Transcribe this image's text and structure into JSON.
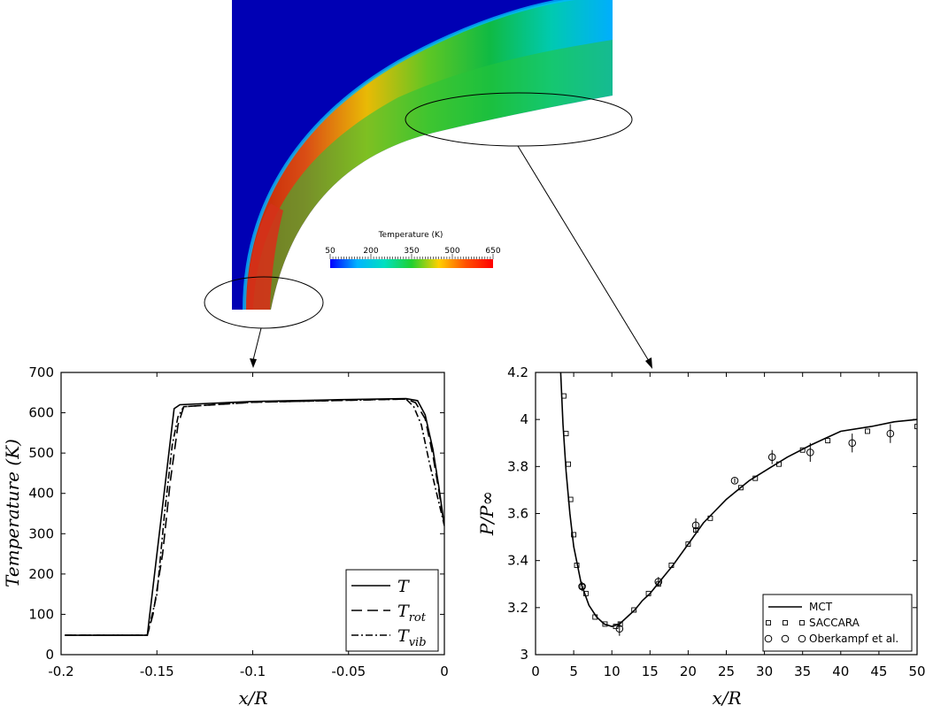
{
  "colorbar": {
    "title": "Temperature (K)",
    "ticks": [
      "50",
      "200",
      "350",
      "500",
      "650"
    ],
    "range": [
      50,
      650
    ],
    "colors": [
      "#0000ff",
      "#00b4ff",
      "#00e0c0",
      "#20d030",
      "#ffd000",
      "#ff5000",
      "#ff0000"
    ]
  },
  "contour": {
    "background_color": "#0000b4",
    "shock_colors": [
      "#00b4ff",
      "#00d0b0",
      "#10c040",
      "#60cc20",
      "#f0c000",
      "#e05010",
      "#c81e00"
    ]
  },
  "chart_data": [
    {
      "type": "line",
      "xlabel": "x/R",
      "ylabel": "Temperature (K)",
      "xlim": [
        -0.2,
        0
      ],
      "ylim": [
        0,
        700
      ],
      "x_ticks": [
        "-0.2",
        "-0.15",
        "-0.1",
        "-0.05",
        "0"
      ],
      "y_ticks": [
        "0",
        "100",
        "200",
        "300",
        "400",
        "500",
        "600",
        "700"
      ],
      "legend_position": "bottom-right",
      "series": [
        {
          "name": "T",
          "style": "solid",
          "x": [
            -0.198,
            -0.155,
            -0.141,
            -0.138,
            -0.1,
            -0.06,
            -0.02,
            -0.014,
            -0.01,
            -0.006,
            -0.003,
            0.0
          ],
          "y": [
            48,
            48,
            610,
            620,
            628,
            632,
            635,
            630,
            595,
            510,
            420,
            320
          ]
        },
        {
          "name": "T_rot",
          "style": "dashed",
          "x": [
            -0.198,
            -0.155,
            -0.152,
            -0.147,
            -0.143,
            -0.139,
            -0.136,
            -0.1,
            -0.06,
            -0.02,
            -0.015,
            -0.01,
            -0.006,
            -0.003,
            0.0
          ],
          "y": [
            48,
            48,
            100,
            250,
            430,
            570,
            615,
            626,
            630,
            634,
            625,
            585,
            495,
            410,
            320
          ]
        },
        {
          "name": "T_vib",
          "style": "dashdot",
          "x": [
            -0.198,
            -0.155,
            -0.15,
            -0.146,
            -0.142,
            -0.139,
            -0.136,
            -0.1,
            -0.06,
            -0.02,
            -0.016,
            -0.012,
            -0.008,
            -0.004,
            0.0
          ],
          "y": [
            48,
            48,
            150,
            350,
            520,
            590,
            615,
            626,
            630,
            634,
            615,
            570,
            480,
            400,
            320
          ]
        }
      ]
    },
    {
      "type": "line",
      "xlabel": "x/R",
      "ylabel": "P/P∞",
      "xlim": [
        0,
        50
      ],
      "ylim": [
        3,
        4.2
      ],
      "x_ticks": [
        "0",
        "5",
        "10",
        "15",
        "20",
        "25",
        "30",
        "35",
        "40",
        "45",
        "50"
      ],
      "y_ticks": [
        "3",
        "3.2",
        "3.4",
        "3.6",
        "3.8",
        "4",
        "4.2"
      ],
      "legend_position": "bottom-right",
      "series": [
        {
          "name": "MCT",
          "style": "solid",
          "x": [
            3.3,
            3.6,
            4.0,
            4.5,
            5.0,
            6.0,
            7.0,
            8.0,
            9.0,
            10.0,
            11.0,
            12.0,
            13.0,
            14.0,
            15.0,
            16.0,
            18.0,
            20.0,
            22.0,
            25.0,
            28.0,
            31.0,
            33.0,
            36.0,
            38.0,
            40.0,
            44.0,
            47.0,
            50.0
          ],
          "y": [
            4.2,
            3.98,
            3.78,
            3.6,
            3.46,
            3.3,
            3.21,
            3.16,
            3.13,
            3.12,
            3.13,
            3.16,
            3.19,
            3.23,
            3.26,
            3.3,
            3.38,
            3.47,
            3.56,
            3.66,
            3.74,
            3.8,
            3.84,
            3.89,
            3.92,
            3.95,
            3.97,
            3.99,
            4.0
          ]
        },
        {
          "name": "SACCARA",
          "style": "square",
          "x": [
            3.7,
            4.0,
            4.3,
            4.6,
            5.0,
            5.4,
            6.1,
            6.6,
            7.8,
            9.1,
            10.5,
            11.1,
            12.9,
            14.8,
            16.1,
            17.8,
            20.0,
            21.0,
            22.9,
            26.9,
            28.8,
            31.9,
            35.0,
            38.3,
            43.5,
            50.0
          ],
          "y": [
            4.1,
            3.94,
            3.81,
            3.66,
            3.51,
            3.38,
            3.29,
            3.26,
            3.16,
            3.13,
            3.12,
            3.13,
            3.19,
            3.26,
            3.3,
            3.38,
            3.47,
            3.53,
            3.58,
            3.71,
            3.75,
            3.81,
            3.87,
            3.91,
            3.95,
            3.97
          ]
        },
        {
          "name": "Oberkampf et al.",
          "style": "circle",
          "x": [
            6.1,
            11.0,
            16.1,
            21.0,
            26.1,
            31.0,
            36.0,
            41.5,
            46.5
          ],
          "y": [
            3.29,
            3.11,
            3.31,
            3.55,
            3.74,
            3.84,
            3.86,
            3.9,
            3.94
          ],
          "yerr": [
            0.02,
            0.03,
            0.02,
            0.03,
            0.01,
            0.03,
            0.04,
            0.04,
            0.04
          ]
        }
      ]
    }
  ]
}
